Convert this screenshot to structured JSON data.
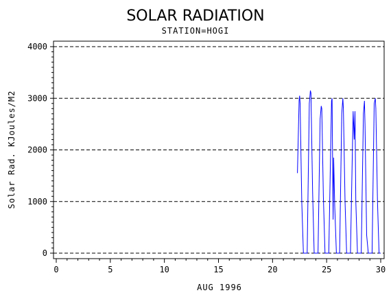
{
  "chart_data": {
    "type": "line",
    "title": "SOLAR RADIATION",
    "subtitle": "STATION=HOGI",
    "xlabel": "AUG 1996",
    "ylabel": "Solar Rad. KJoules/M2",
    "xlim": [
      0,
      30
    ],
    "ylim": [
      0,
      4000
    ],
    "x_ticks": [
      0,
      5,
      10,
      15,
      20,
      25,
      30
    ],
    "y_ticks": [
      0,
      1000,
      2000,
      3000,
      4000
    ],
    "grid": "horizontal-dashed",
    "series_color": "#0000ff",
    "series": [
      {
        "x": [
          22.3,
          22.45,
          22.5,
          22.55,
          22.7,
          22.85,
          23.0,
          23.2,
          23.4,
          23.5,
          23.55,
          23.7,
          23.85,
          24.0,
          24.2,
          24.4,
          24.5,
          24.55,
          24.7,
          24.85,
          25.0,
          25.2,
          25.45,
          25.5,
          25.6,
          25.65,
          25.75,
          25.9,
          26.0,
          26.2,
          26.4,
          26.5,
          26.55,
          26.7,
          26.85,
          27.0,
          27.2,
          27.45,
          27.55,
          27.62,
          27.7,
          27.85,
          28.0,
          28.2,
          28.4,
          28.5,
          28.55,
          28.7,
          28.85,
          29.0,
          29.2,
          29.4,
          29.5,
          29.55,
          29.7,
          29.85,
          30.0
        ],
        "y": [
          1550,
          2950,
          3050,
          2900,
          1000,
          0,
          0,
          0,
          2900,
          3150,
          3100,
          1200,
          0,
          0,
          0,
          2600,
          2850,
          2800,
          1100,
          0,
          0,
          0,
          2950,
          3000,
          650,
          1850,
          900,
          0,
          0,
          0,
          2700,
          3000,
          2800,
          1000,
          0,
          0,
          0,
          2750,
          2200,
          2750,
          1000,
          0,
          0,
          0,
          2700,
          2950,
          2500,
          350,
          0,
          0,
          0,
          2900,
          3000,
          2800,
          1000,
          0,
          0
        ]
      }
    ]
  }
}
